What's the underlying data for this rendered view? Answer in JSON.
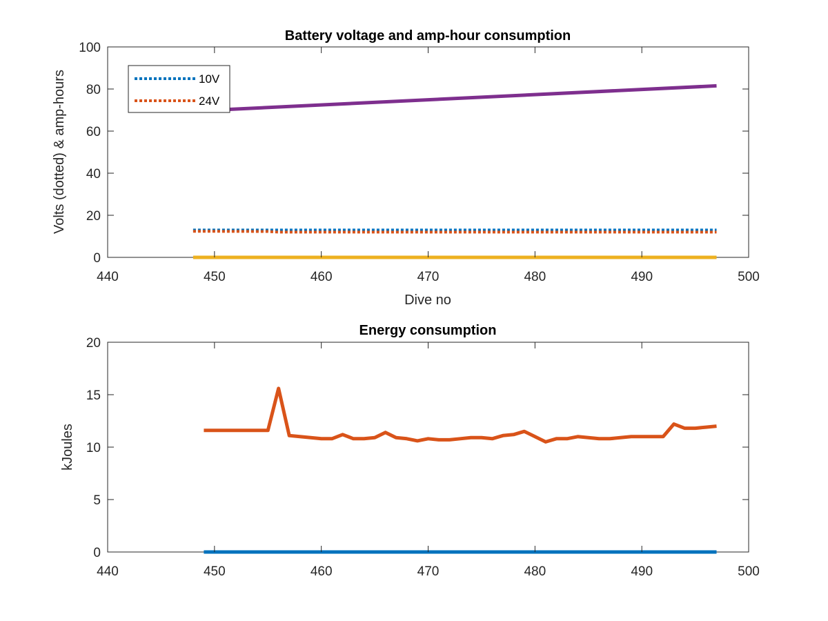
{
  "chart_data": [
    {
      "type": "line",
      "title": "Battery voltage and amp-hour consumption",
      "xlabel": "Dive no",
      "ylabel": "Volts (dotted) & amp-hours",
      "xlim": [
        440,
        500
      ],
      "ylim": [
        0,
        100
      ],
      "xticks": [
        "440",
        "450",
        "460",
        "470",
        "480",
        "490",
        "500"
      ],
      "yticks": [
        "0",
        "20",
        "40",
        "60",
        "80",
        "100"
      ],
      "grid": false,
      "legend": {
        "placement": "top-left",
        "entries": [
          "10V",
          "24V"
        ]
      },
      "series": [
        {
          "name": "10V",
          "style": "dotted",
          "color": "#0072BD",
          "x": [
            448,
            497
          ],
          "y": [
            13,
            13
          ]
        },
        {
          "name": "24V",
          "style": "dotted",
          "color": "#D95319",
          "x": [
            448,
            455,
            456,
            497
          ],
          "y": [
            12.4,
            12.3,
            12.0,
            12.0
          ]
        },
        {
          "style": "solid",
          "color": "#7E2F8E",
          "x": [
            448,
            497
          ],
          "y": [
            69.5,
            81.5
          ]
        },
        {
          "style": "solid",
          "color": "#EDB120",
          "x": [
            448,
            497
          ],
          "y": [
            0,
            0
          ]
        }
      ]
    },
    {
      "type": "line",
      "title": "Energy consumption",
      "xlabel": "",
      "ylabel": "kJoules",
      "xlim": [
        440,
        500
      ],
      "ylim": [
        0,
        20
      ],
      "xticks": [
        "440",
        "450",
        "460",
        "470",
        "480",
        "490",
        "500"
      ],
      "yticks": [
        "0",
        "5",
        "10",
        "15",
        "20"
      ],
      "grid": false,
      "series": [
        {
          "style": "solid",
          "color": "#0072BD",
          "x": [
            449,
            497
          ],
          "y": [
            0,
            0
          ]
        },
        {
          "style": "solid",
          "color": "#D95319",
          "x": [
            449,
            450,
            451,
            452,
            453,
            454,
            455,
            456,
            457,
            458,
            459,
            460,
            461,
            462,
            463,
            464,
            465,
            466,
            467,
            468,
            469,
            470,
            471,
            472,
            473,
            474,
            475,
            476,
            477,
            478,
            479,
            480,
            481,
            482,
            483,
            484,
            485,
            486,
            487,
            488,
            489,
            490,
            491,
            492,
            493,
            494,
            495,
            496,
            497
          ],
          "y": [
            11.6,
            11.6,
            11.6,
            11.6,
            11.6,
            11.6,
            11.6,
            15.6,
            11.1,
            11.0,
            10.9,
            10.8,
            10.8,
            11.2,
            10.8,
            10.8,
            10.9,
            11.4,
            10.9,
            10.8,
            10.6,
            10.8,
            10.7,
            10.7,
            10.8,
            10.9,
            10.9,
            10.8,
            11.1,
            11.2,
            11.5,
            11.0,
            10.5,
            10.8,
            10.8,
            11.0,
            10.9,
            10.8,
            10.8,
            10.9,
            11.0,
            11.0,
            11.0,
            11.0,
            12.2,
            11.8,
            11.8,
            11.9,
            12.0
          ]
        }
      ]
    }
  ]
}
